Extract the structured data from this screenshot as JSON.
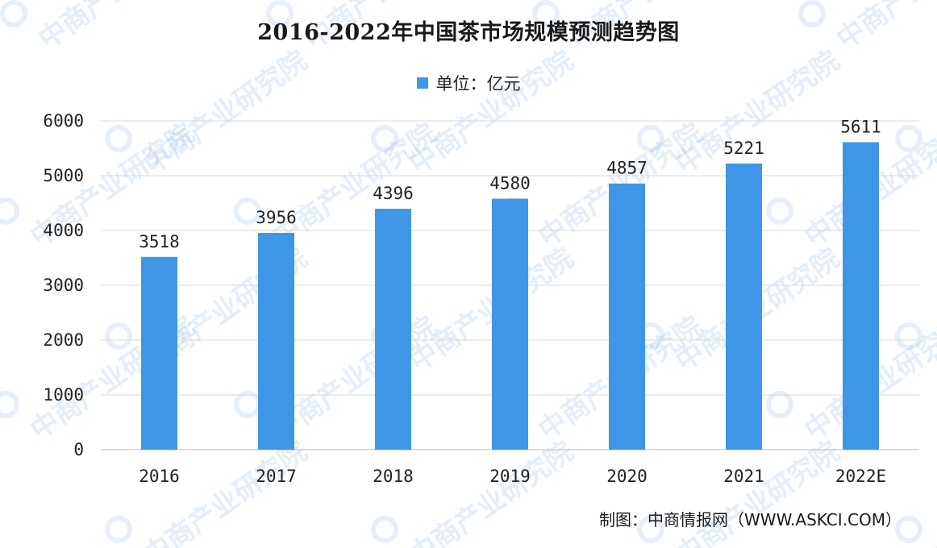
{
  "title": "2016-2022年中国茶市场规模预测趋势图",
  "legend": {
    "label": "单位：亿元"
  },
  "source": "制图：中商情报网（WWW.ASKCI.COM）",
  "watermark": "中商产业研究院",
  "colors": {
    "bar": "#3d97e6",
    "grid": "#d9d9d9",
    "axis": "#bfbfbf"
  },
  "chart_data": {
    "type": "bar",
    "categories": [
      "2016",
      "2017",
      "2018",
      "2019",
      "2020",
      "2021",
      "2022E"
    ],
    "values": [
      3518,
      3956,
      4396,
      4580,
      4857,
      5221,
      5611
    ],
    "series": [
      {
        "name": "单位：亿元",
        "values": [
          3518,
          3956,
          4396,
          4580,
          4857,
          5221,
          5611
        ]
      }
    ],
    "ylim": [
      0,
      6000
    ],
    "yticks": [
      0,
      1000,
      2000,
      3000,
      4000,
      5000,
      6000
    ],
    "grid": true,
    "legend_position": "top-center",
    "data_labels": true
  }
}
